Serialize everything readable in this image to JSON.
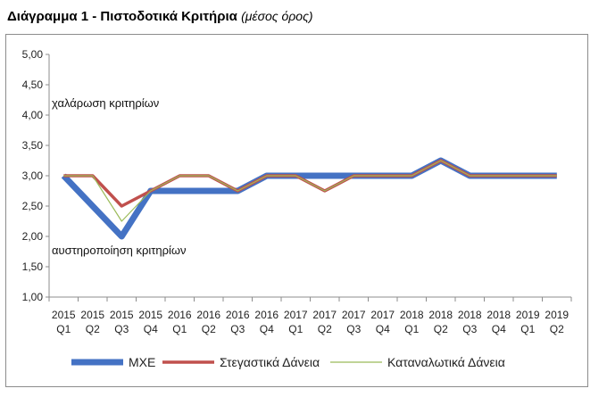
{
  "header": {
    "title": "Διάγραμμα 1 - Πιστοδοτικά Κριτήρια",
    "subtitle": "(μέσος όρος)"
  },
  "chart_data": {
    "type": "line",
    "categories": [
      [
        "2015",
        "Q1"
      ],
      [
        "2015",
        "Q2"
      ],
      [
        "2015",
        "Q3"
      ],
      [
        "2015",
        "Q4"
      ],
      [
        "2016",
        "Q1"
      ],
      [
        "2016",
        "Q2"
      ],
      [
        "2016",
        "Q3"
      ],
      [
        "2016",
        "Q4"
      ],
      [
        "2017",
        "Q1"
      ],
      [
        "2017",
        "Q2"
      ],
      [
        "2017",
        "Q3"
      ],
      [
        "2017",
        "Q4"
      ],
      [
        "2018",
        "Q1"
      ],
      [
        "2018",
        "Q2"
      ],
      [
        "2018",
        "Q3"
      ],
      [
        "2018",
        "Q4"
      ],
      [
        "2019",
        "Q1"
      ],
      [
        "2019",
        "Q2"
      ]
    ],
    "yticks": [
      "1,00",
      "1,50",
      "2,00",
      "2,50",
      "3,00",
      "3,50",
      "4,00",
      "4,50",
      "5,00"
    ],
    "ylim": [
      1,
      5
    ],
    "series": [
      {
        "name": "ΜΧΕ",
        "color": "#4472c4",
        "values": [
          3.0,
          2.5,
          2.0,
          2.75,
          2.75,
          2.75,
          2.75,
          3.0,
          3.0,
          3.0,
          3.0,
          3.0,
          3.0,
          3.25,
          3.0,
          3.0,
          3.0,
          3.0
        ]
      },
      {
        "name": "Στεγαστικά Δάνεια",
        "color": "#c0504d",
        "values": [
          3.0,
          3.0,
          2.5,
          2.75,
          3.0,
          3.0,
          2.75,
          3.0,
          3.0,
          2.75,
          3.0,
          3.0,
          3.0,
          3.25,
          3.0,
          3.0,
          3.0,
          3.0
        ]
      },
      {
        "name": "Καταναλωτικά Δάνεια",
        "color": "#9bbb59",
        "values": [
          3.0,
          3.0,
          2.25,
          2.75,
          3.0,
          3.0,
          2.75,
          3.0,
          3.0,
          2.75,
          3.0,
          3.0,
          3.0,
          3.25,
          3.0,
          3.0,
          3.0,
          3.0
        ]
      }
    ],
    "annotations": {
      "top": "χαλάρωση κριτηρίων",
      "bottom": "αυστηροποίηση κριτηρίων"
    },
    "grid": false,
    "legend": "bottom"
  }
}
